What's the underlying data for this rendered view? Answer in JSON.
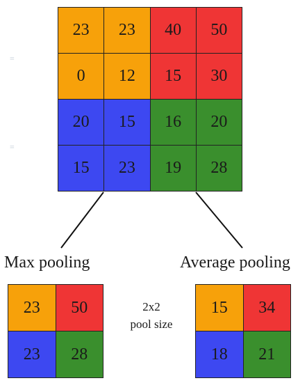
{
  "colors": {
    "orange": "#f7a10a",
    "red": "#ef3535",
    "blue": "#3d48f1",
    "green": "#3a8f2d"
  },
  "input_grid": {
    "rows": [
      [
        {
          "v": "23",
          "c": "orange"
        },
        {
          "v": "23",
          "c": "orange"
        },
        {
          "v": "40",
          "c": "red"
        },
        {
          "v": "50",
          "c": "red"
        }
      ],
      [
        {
          "v": "0",
          "c": "orange"
        },
        {
          "v": "12",
          "c": "orange"
        },
        {
          "v": "15",
          "c": "red"
        },
        {
          "v": "30",
          "c": "red"
        }
      ],
      [
        {
          "v": "20",
          "c": "blue"
        },
        {
          "v": "15",
          "c": "blue"
        },
        {
          "v": "16",
          "c": "green"
        },
        {
          "v": "20",
          "c": "green"
        }
      ],
      [
        {
          "v": "15",
          "c": "blue"
        },
        {
          "v": "23",
          "c": "blue"
        },
        {
          "v": "19",
          "c": "green"
        },
        {
          "v": "28",
          "c": "green"
        }
      ]
    ]
  },
  "max_pooling": {
    "label": "Max pooling",
    "rows": [
      [
        {
          "v": "23",
          "c": "orange"
        },
        {
          "v": "50",
          "c": "red"
        }
      ],
      [
        {
          "v": "23",
          "c": "blue"
        },
        {
          "v": "28",
          "c": "green"
        }
      ]
    ]
  },
  "average_pooling": {
    "label": "Average pooling",
    "rows": [
      [
        {
          "v": "15",
          "c": "orange"
        },
        {
          "v": "34",
          "c": "red"
        }
      ],
      [
        {
          "v": "18",
          "c": "blue"
        },
        {
          "v": "21",
          "c": "green"
        }
      ]
    ]
  },
  "pool_size": {
    "line1": "2x2",
    "line2": "pool size"
  }
}
